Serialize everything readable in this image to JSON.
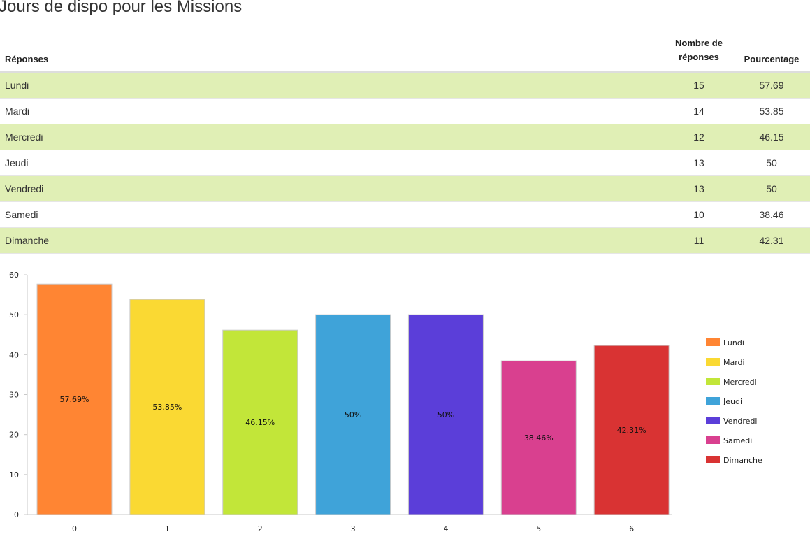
{
  "title": "Jours de dispo pour les Missions",
  "table": {
    "headers": {
      "answer": "Réponses",
      "count_line1": "Nombre de",
      "count_line2": "réponses",
      "percent": "Pourcentage"
    },
    "rows": [
      {
        "label": "Lundi",
        "count": "15",
        "percent": "57.69"
      },
      {
        "label": "Mardi",
        "count": "14",
        "percent": "53.85"
      },
      {
        "label": "Mercredi",
        "count": "12",
        "percent": "46.15"
      },
      {
        "label": "Jeudi",
        "count": "13",
        "percent": "50"
      },
      {
        "label": "Vendredi",
        "count": "13",
        "percent": "50"
      },
      {
        "label": "Samedi",
        "count": "10",
        "percent": "38.46"
      },
      {
        "label": "Dimanche",
        "count": "11",
        "percent": "42.31"
      }
    ],
    "stripe_color": "#e0efb5"
  },
  "chart_data": {
    "type": "bar",
    "categories": [
      "0",
      "1",
      "2",
      "3",
      "4",
      "5",
      "6"
    ],
    "values": [
      57.69,
      53.85,
      46.15,
      50,
      50,
      38.46,
      42.31
    ],
    "data_labels": [
      "57.69%",
      "53.85%",
      "46.15%",
      "50%",
      "50%",
      "38.46%",
      "42.31%"
    ],
    "legend_labels": [
      "Lundi",
      "Mardi",
      "Mercredi",
      "Jeudi",
      "Vendredi",
      "Samedi",
      "Dimanche"
    ],
    "colors": [
      "#ff8533",
      "#fad933",
      "#c2e639",
      "#3fa3d9",
      "#5b3ed9",
      "#d9408f",
      "#d93333"
    ],
    "ylim": [
      0,
      60
    ],
    "yticks": [
      "0",
      "10",
      "20",
      "30",
      "40",
      "50",
      "60"
    ],
    "grid": false,
    "legend": "right"
  }
}
